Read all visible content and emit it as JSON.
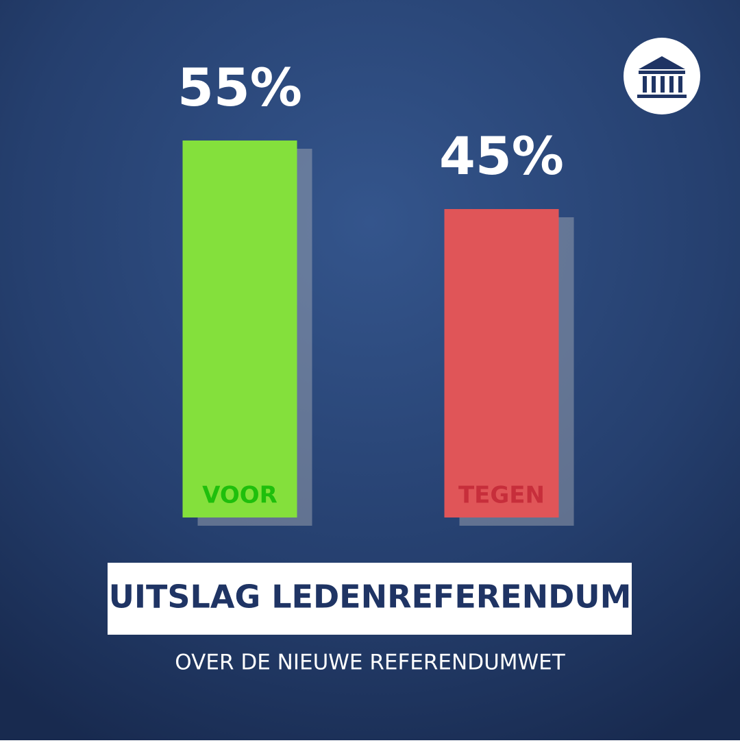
{
  "chart_data": {
    "type": "bar",
    "title": "UITSLAG LEDENREFERENDUM",
    "subtitle": "OVER DE NIEUWE REFERENDUMWET",
    "categories": [
      "VOOR",
      "TEGEN"
    ],
    "values": [
      55,
      45
    ],
    "value_labels": [
      "55%",
      "45%"
    ],
    "colors": [
      "#84e03c",
      "#e05558"
    ],
    "label_colors": [
      "#1fbf0c",
      "#c72e3b"
    ]
  }
}
